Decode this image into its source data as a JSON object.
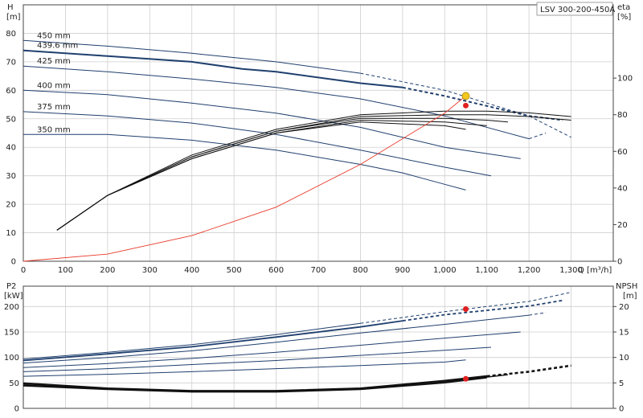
{
  "model_label": "LSV 300-200-450A",
  "top": {
    "left_axis_title": "H",
    "left_axis_unit": "[m]",
    "right_axis_title": "eta",
    "right_axis_unit": "[%]",
    "x_axis_title": "Q [m³/h]",
    "x_ticks": [
      "0",
      "100",
      "200",
      "300",
      "400",
      "500",
      "600",
      "700",
      "800",
      "900",
      "1,000",
      "1,100",
      "1,200",
      "1,300"
    ],
    "y_ticks": [
      "0",
      "10",
      "20",
      "30",
      "40",
      "50",
      "60",
      "70",
      "80"
    ],
    "eta_ticks": [
      "0",
      "20",
      "40",
      "60",
      "80",
      "100"
    ]
  },
  "bottom": {
    "left_axis_title": "P2",
    "left_axis_unit": "[kW]",
    "right_axis_title": "NPSH",
    "right_axis_unit": "[m]",
    "y_ticks": [
      "0",
      "50",
      "100",
      "150",
      "200"
    ],
    "npsh_ticks": [
      "0",
      "5",
      "10",
      "15",
      "20"
    ]
  },
  "colors": {
    "curve": "#1f3f6e",
    "efficiency": "#111111",
    "system": "#e83a2a",
    "duty_point": "#f2c81f",
    "marker": "#e02020",
    "grid": "#cfcfcf"
  },
  "chart_data": [
    {
      "type": "line",
      "panel": "head-efficiency",
      "xlim": [
        0,
        1400
      ],
      "ylim": [
        0,
        90
      ],
      "y2lim": [
        0,
        140
      ],
      "grid": true,
      "head_curves": [
        {
          "name": "450 mm",
          "x": [
            0,
            200,
            400,
            600,
            800,
            1000,
            1200,
            1300
          ],
          "values": [
            77.5,
            75.5,
            73,
            70,
            66,
            60,
            51,
            43.5
          ],
          "solid_until": 800
        },
        {
          "name": "439.6 mm",
          "x": [
            0,
            200,
            400,
            520,
            600,
            800,
            900,
            1000,
            1200,
            1280
          ],
          "values": [
            74,
            72,
            70,
            67.5,
            66.5,
            62.5,
            61,
            58,
            51,
            49.5
          ],
          "solid_until": 900
        },
        {
          "name": "425 mm",
          "x": [
            0,
            200,
            400,
            600,
            800,
            1000,
            1200,
            1240
          ],
          "values": [
            68.5,
            66.5,
            64,
            61,
            57,
            51,
            43,
            45
          ],
          "solid_until": 1200
        },
        {
          "name": "400 mm",
          "x": [
            0,
            200,
            400,
            600,
            800,
            1000,
            1180
          ],
          "values": [
            60,
            58.5,
            55.5,
            52,
            47,
            40,
            36
          ],
          "solid_until": 1180
        },
        {
          "name": "375 mm",
          "x": [
            0,
            200,
            400,
            600,
            800,
            1000,
            1110
          ],
          "values": [
            52.5,
            51,
            48.5,
            44.5,
            39,
            33,
            30
          ],
          "solid_until": 1110
        },
        {
          "name": "350 mm",
          "x": [
            0,
            200,
            400,
            600,
            800,
            900,
            1000,
            1050
          ],
          "values": [
            44.5,
            44.5,
            42.5,
            39,
            34,
            31,
            27,
            25
          ],
          "solid_until": 1050
        }
      ],
      "efficiency_curves": [
        {
          "x": [
            80,
            200,
            400,
            600,
            800,
            1000,
            1100,
            1200,
            1300
          ],
          "values": [
            17,
            36,
            58,
            72,
            80,
            82,
            82,
            81,
            79
          ]
        },
        {
          "x": [
            80,
            200,
            400,
            600,
            800,
            1000,
            1100,
            1200,
            1300
          ],
          "values": [
            17,
            36,
            57,
            71,
            79,
            80,
            80,
            79,
            77
          ]
        },
        {
          "x": [
            80,
            200,
            400,
            600,
            800,
            1000,
            1100,
            1150
          ],
          "values": [
            17,
            36,
            57,
            71,
            78,
            78,
            77,
            76
          ]
        },
        {
          "x": [
            80,
            200,
            400,
            600,
            800,
            1000,
            1100
          ],
          "values": [
            17,
            36,
            56,
            70,
            77,
            76,
            74
          ]
        },
        {
          "x": [
            80,
            200,
            400,
            600,
            800,
            1000,
            1050
          ],
          "values": [
            17,
            36,
            56,
            70,
            76,
            74,
            72
          ]
        }
      ],
      "system_curve": {
        "x": [
          0,
          200,
          400,
          600,
          800,
          1000,
          1050
        ],
        "values": [
          0,
          2.5,
          9,
          19,
          34,
          52,
          58
        ]
      },
      "duty_point": {
        "x": 1050,
        "head": 58
      },
      "eta_marker": {
        "x": 1050,
        "eta": 85
      }
    },
    {
      "type": "line",
      "panel": "power-npsh",
      "xlim": [
        0,
        1400
      ],
      "ylim": [
        0,
        240
      ],
      "y2lim": [
        0,
        24
      ],
      "grid": true,
      "power_curves": [
        {
          "name": "450 mm",
          "x": [
            0,
            200,
            400,
            600,
            800,
            1000,
            1200,
            1300
          ],
          "values": [
            97,
            110,
            125,
            145,
            167,
            190,
            210,
            228
          ],
          "solid_until": 800
        },
        {
          "name": "439.6 mm",
          "x": [
            0,
            200,
            400,
            600,
            800,
            900,
            1000,
            1200,
            1280
          ],
          "values": [
            94,
            107,
            121,
            140,
            160,
            172,
            184,
            201,
            212
          ],
          "solid_until": 900
        },
        {
          "name": "425 mm",
          "x": [
            0,
            200,
            400,
            600,
            800,
            1000,
            1200,
            1240
          ],
          "values": [
            89,
            100,
            113,
            130,
            148,
            165,
            183,
            188
          ],
          "solid_until": 1200
        },
        {
          "name": "400 mm",
          "x": [
            0,
            200,
            400,
            600,
            800,
            1000,
            1180
          ],
          "values": [
            80,
            88,
            98,
            110,
            124,
            138,
            150
          ],
          "solid_until": 1180
        },
        {
          "name": "375 mm",
          "x": [
            0,
            200,
            400,
            600,
            800,
            1000,
            1110
          ],
          "values": [
            72,
            78,
            86,
            94,
            104,
            114,
            120
          ],
          "solid_until": 1110
        },
        {
          "name": "350 mm",
          "x": [
            0,
            200,
            400,
            600,
            800,
            1000,
            1050
          ],
          "values": [
            63,
            67,
            72,
            78,
            84,
            91,
            95
          ],
          "solid_until": 1050
        }
      ],
      "npsh_curves": [
        {
          "x": [
            0,
            200,
            400,
            600,
            800,
            1000,
            1200,
            1300
          ],
          "values": [
            5,
            4,
            3.5,
            3.5,
            4,
            5.5,
            7.3,
            8.5
          ],
          "solid_until": 1100
        },
        {
          "x": [
            0,
            200,
            400,
            600,
            800,
            1000,
            1200,
            1300
          ],
          "values": [
            4.8,
            3.9,
            3.4,
            3.4,
            3.9,
            5.4,
            7.1,
            8.3
          ],
          "solid_until": 1100
        },
        {
          "x": [
            0,
            200,
            400,
            600,
            800,
            1000,
            1150
          ],
          "values": [
            4.6,
            3.8,
            3.3,
            3.3,
            3.8,
            5.2,
            6.6
          ],
          "solid_until": 1150
        },
        {
          "x": [
            0,
            200,
            400,
            600,
            800,
            1000,
            1100
          ],
          "values": [
            4.4,
            3.7,
            3.2,
            3.2,
            3.7,
            5,
            6
          ],
          "solid_until": 1100
        }
      ],
      "power_marker": {
        "x": 1050,
        "p2": 195
      },
      "npsh_marker": {
        "x": 1050,
        "npsh": 5.8
      }
    }
  ]
}
